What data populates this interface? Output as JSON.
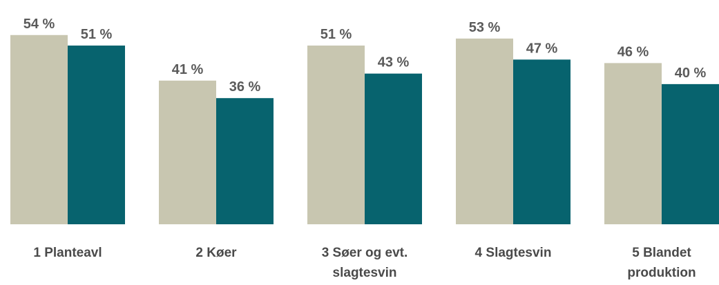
{
  "chart_data": {
    "type": "bar",
    "categories": [
      "1 Planteavl",
      "2 Køer",
      "3 Søer og evt. slagtesvin",
      "4 Slagtesvin",
      "5 Blandet produktion"
    ],
    "series": [
      {
        "color": "#c8c6b0",
        "values": [
          54,
          41,
          51,
          53,
          46
        ],
        "value_labels": [
          "54 %",
          "41 %",
          "51 %",
          "53 %",
          "46 %"
        ]
      },
      {
        "color": "#07636e",
        "values": [
          51,
          36,
          43,
          47,
          40
        ],
        "value_labels": [
          "51 %",
          "36 %",
          "43 %",
          "47 %",
          "40 %"
        ]
      }
    ],
    "ylim": [
      0,
      64
    ]
  }
}
